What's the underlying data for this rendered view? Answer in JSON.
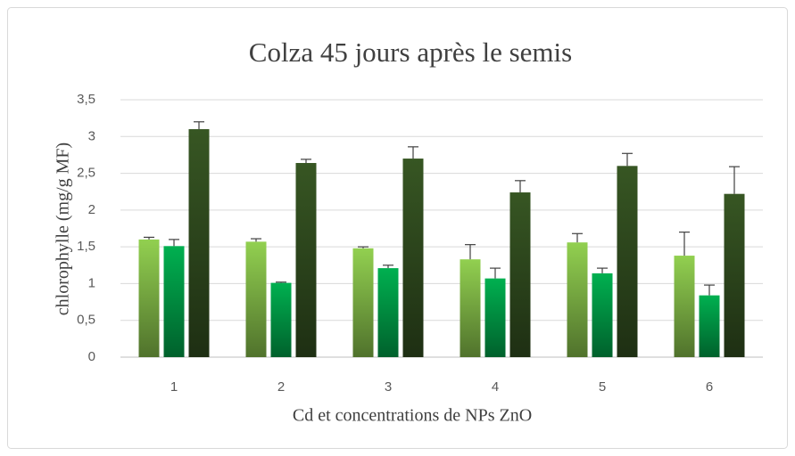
{
  "chart_data": {
    "type": "bar",
    "title": "Colza 45 jours après le semis",
    "x_label": "Cd et concentrations de NPs ZnO",
    "y_label": "chlorophylle (mg/g MF)",
    "categories": [
      "1",
      "2",
      "3",
      "4",
      "5",
      "6"
    ],
    "series": [
      {
        "color": "#92d050",
        "values": [
          1.6,
          1.57,
          1.48,
          1.33,
          1.56,
          1.38
        ],
        "errors": [
          0.03,
          0.04,
          0.02,
          0.2,
          0.12,
          0.32
        ]
      },
      {
        "color": "#00b050",
        "values": [
          1.51,
          1.01,
          1.21,
          1.07,
          1.14,
          0.84
        ],
        "errors": [
          0.09,
          0.01,
          0.04,
          0.14,
          0.07,
          0.14
        ]
      },
      {
        "color": "#375623",
        "values": [
          3.1,
          2.64,
          2.7,
          2.24,
          2.6,
          2.22
        ],
        "errors": [
          0.1,
          0.05,
          0.16,
          0.16,
          0.17,
          0.37
        ]
      }
    ],
    "ylim": [
      0,
      3.5
    ],
    "yticks": [
      0,
      {
        "value": 0.5,
        "label": "0,5"
      },
      1,
      {
        "value": 1.5,
        "label": "1,5"
      },
      2,
      {
        "value": 2.5,
        "label": "2,5"
      },
      3,
      {
        "value": 3.5,
        "label": "3,5"
      }
    ],
    "grid": true
  }
}
